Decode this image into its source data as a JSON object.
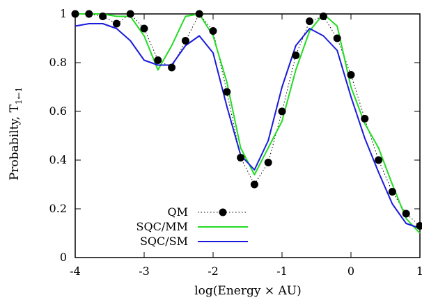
{
  "chart_data": {
    "type": "line",
    "xlabel": "log(Energy × AU)",
    "ylabel": "Probabilty, T",
    "ylabel_subscript": "1←1",
    "xlim": [
      -4,
      1
    ],
    "ylim": [
      0,
      1
    ],
    "x_ticks": [
      -4,
      -3,
      -2,
      -1,
      0,
      1
    ],
    "x_tick_labels": [
      "-4",
      "-3",
      "-2",
      "-1",
      "0",
      "1"
    ],
    "y_ticks": [
      0,
      0.2,
      0.4,
      0.6,
      0.8,
      1
    ],
    "y_tick_labels": [
      "0",
      "0.2",
      "0.4",
      "0.6",
      "0.8",
      "1"
    ],
    "grid": false,
    "legend_position": "bottom-left",
    "series": [
      {
        "name": "QM",
        "color": "#000000",
        "style": "dotted-with-markers",
        "x": [
          -4.0,
          -3.8,
          -3.6,
          -3.4,
          -3.2,
          -3.0,
          -2.8,
          -2.6,
          -2.4,
          -2.2,
          -2.0,
          -1.8,
          -1.6,
          -1.4,
          -1.2,
          -1.0,
          -0.8,
          -0.6,
          -0.4,
          -0.2,
          0.0,
          0.2,
          0.4,
          0.6,
          0.8,
          1.0
        ],
        "y": [
          1.0,
          1.0,
          0.99,
          0.96,
          1.0,
          0.94,
          0.81,
          0.78,
          0.89,
          1.0,
          0.93,
          0.68,
          0.41,
          0.3,
          0.39,
          0.6,
          0.83,
          0.97,
          0.99,
          0.9,
          0.75,
          0.57,
          0.4,
          0.27,
          0.18,
          0.13
        ]
      },
      {
        "name": "SQC/MM",
        "color": "#22dd22",
        "style": "solid",
        "x": [
          -4.0,
          -3.6,
          -3.4,
          -3.2,
          -3.0,
          -2.8,
          -2.6,
          -2.4,
          -2.2,
          -2.0,
          -1.8,
          -1.6,
          -1.4,
          -1.2,
          -1.0,
          -0.8,
          -0.6,
          -0.4,
          -0.2,
          0.0,
          0.2,
          0.4,
          0.6,
          0.8,
          1.0
        ],
        "y": [
          1.0,
          1.0,
          0.99,
          0.99,
          0.91,
          0.77,
          0.87,
          0.99,
          1.0,
          0.91,
          0.72,
          0.45,
          0.34,
          0.45,
          0.56,
          0.77,
          0.93,
          1.0,
          0.95,
          0.7,
          0.55,
          0.45,
          0.3,
          0.16,
          0.1
        ]
      },
      {
        "name": "SQC/SM",
        "color": "#1a1adc",
        "style": "solid",
        "x": [
          -4.0,
          -3.8,
          -3.6,
          -3.4,
          -3.2,
          -3.0,
          -2.8,
          -2.6,
          -2.4,
          -2.2,
          -2.0,
          -1.8,
          -1.6,
          -1.4,
          -1.2,
          -1.0,
          -0.8,
          -0.6,
          -0.4,
          -0.2,
          0.0,
          0.2,
          0.4,
          0.6,
          0.8,
          1.0
        ],
        "y": [
          0.95,
          0.96,
          0.96,
          0.94,
          0.89,
          0.81,
          0.79,
          0.79,
          0.87,
          0.91,
          0.84,
          0.62,
          0.42,
          0.36,
          0.48,
          0.7,
          0.87,
          0.94,
          0.91,
          0.85,
          0.66,
          0.49,
          0.35,
          0.22,
          0.14,
          0.12
        ]
      }
    ]
  }
}
